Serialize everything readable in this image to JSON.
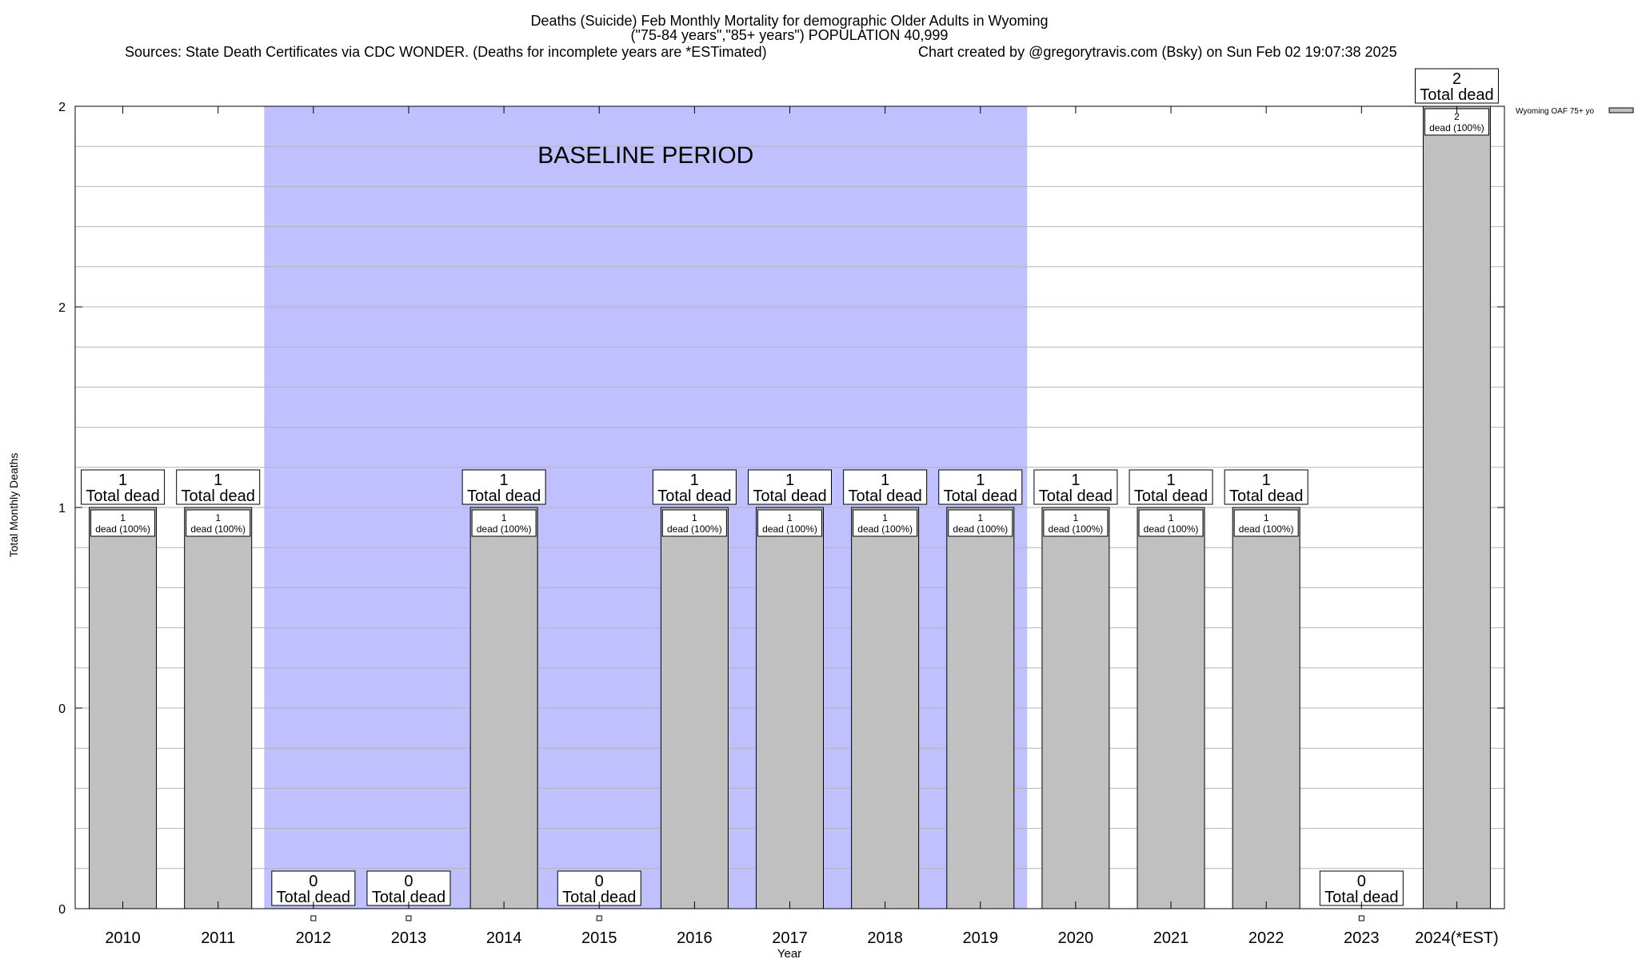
{
  "chart_data": {
    "type": "bar",
    "title_lines": [
      "Deaths (Suicide) Feb Monthly Mortality for demographic Older Adults in Wyoming",
      "(\"75-84 years\",\"85+ years\") POPULATION 40,999"
    ],
    "sources": "Sources: State Death Certificates via CDC WONDER. (Deaths for incomplete years are *ESTimated)",
    "credit": "Chart created by @gregorytravis.com (Bsky) on Sun Feb 02 19:07:38 2025",
    "xlabel": "Year",
    "ylabel": "Total Monthly Deaths",
    "ylim": [
      0,
      2
    ],
    "yticks": [
      {
        "value": 0,
        "label": "0"
      },
      {
        "value": 0.5,
        "label": "0"
      },
      {
        "value": 1,
        "label": "1"
      },
      {
        "value": 1.5,
        "label": "2"
      },
      {
        "value": 2,
        "label": "2"
      }
    ],
    "minor_grid_step": 0.1,
    "grid": true,
    "categories": [
      "2010",
      "2011",
      "2012",
      "2013",
      "2014",
      "2015",
      "2016",
      "2017",
      "2018",
      "2019",
      "2020",
      "2021",
      "2022",
      "2023",
      "2024(*EST)"
    ],
    "series": [
      {
        "name": "Wyoming OAF 75+ yo",
        "values": [
          1,
          1,
          0,
          0,
          1,
          0,
          1,
          1,
          1,
          1,
          1,
          1,
          1,
          0,
          2
        ],
        "color": "#c0c0c0"
      }
    ],
    "total_label_suffix": "Total dead",
    "inner_label_suffix": "dead (100%)",
    "baseline": {
      "label": "BASELINE PERIOD",
      "from_category": "2012",
      "to_category": "2019",
      "color": "#c0c0ff"
    },
    "legend": {
      "placement": "top-right",
      "label": "Wyoming OAF 75+ yo"
    }
  }
}
